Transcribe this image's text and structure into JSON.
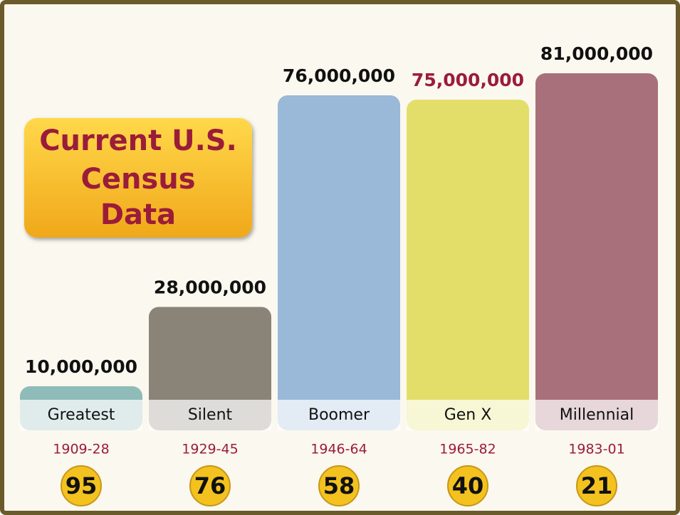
{
  "chart_data": {
    "type": "bar",
    "title_lines": [
      "Current U.S.",
      "Census",
      "Data"
    ],
    "categories": [
      "Greatest",
      "Silent",
      "Boomer",
      "Gen X",
      "Millennial"
    ],
    "values": [
      10000000,
      28000000,
      76000000,
      75000000,
      81000000
    ],
    "value_labels": [
      "10,000,000",
      "28,000,000",
      "76,000,000",
      "75,000,000",
      "81,000,000"
    ],
    "value_label_colors": [
      "#111111",
      "#111111",
      "#111111",
      "#9b1c3a",
      "#111111"
    ],
    "colors": [
      "#8fbcb8",
      "#8a8378",
      "#9ab8d8",
      "#e3de6a",
      "#a8707a"
    ],
    "years": [
      "1909-28",
      "1929-45",
      "1946-64",
      "1965-82",
      "1983-01"
    ],
    "ages": [
      95,
      76,
      58,
      40,
      21
    ]
  }
}
